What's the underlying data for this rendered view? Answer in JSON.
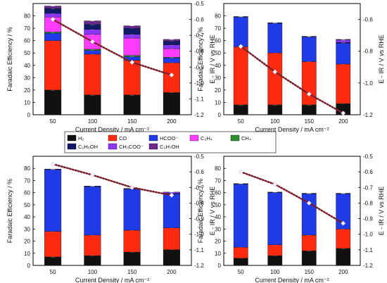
{
  "colors": {
    "H2": "#111111",
    "CO": "#ff2a10",
    "HCOO-": "#1f3ae6",
    "C2H4": "#ff3cff",
    "CH4": "#2f8f2f",
    "C2H5OH": "#101a66",
    "CH3COO-": "#8a36ff",
    "C3H7OH": "#6a2a8c",
    "potential": "#7a1f2a",
    "marker": "#f0f0ff"
  },
  "legend": {
    "items": [
      {
        "key": "H2",
        "label": "H₂"
      },
      {
        "key": "CO",
        "label": "CO"
      },
      {
        "key": "HCOO-",
        "label": "HCOO⁻"
      },
      {
        "key": "C2H4",
        "label": "C₂H₄"
      },
      {
        "key": "CH4",
        "label": "CH₄"
      },
      {
        "key": "C2H5OH",
        "label": "C₂H₅OH"
      },
      {
        "key": "CH3COO-",
        "label": "CH₃COO⁻"
      },
      {
        "key": "C3H7OH",
        "label": "C₃H₇OH"
      }
    ]
  },
  "chart_data": [
    {
      "type": "bar",
      "stacked": true,
      "xlabel": "Current Density / mA cm⁻²",
      "ylabel": "Faradaic Efficiency / %",
      "ylabel_right": "E - IR / V vs RHE",
      "categories": [
        "50",
        "100",
        "150",
        "200"
      ],
      "ylim": [
        0,
        90
      ],
      "yticks": [
        0,
        10,
        20,
        30,
        40,
        50,
        60,
        70,
        80
      ],
      "y2lim": [
        -1.2,
        -0.5
      ],
      "y2ticks": [
        -0.5,
        -0.6,
        -0.7,
        -0.8,
        -0.9,
        -1.0,
        -1.1,
        -1.2
      ],
      "show_xlabel": true,
      "show_legend_below": true,
      "series": [
        {
          "key": "H2",
          "values": [
            20,
            16,
            16,
            18
          ]
        },
        {
          "key": "CO",
          "values": [
            40,
            33,
            28,
            24
          ]
        },
        {
          "key": "HCOO-",
          "values": [
            6,
            3,
            3,
            4
          ]
        },
        {
          "key": "CH4",
          "values": [
            1,
            1,
            1,
            0.5
          ]
        },
        {
          "key": "C2H4",
          "values": [
            12,
            12,
            14,
            7
          ]
        },
        {
          "key": "CH3COO-",
          "values": [
            3,
            4,
            3,
            3
          ]
        },
        {
          "key": "C2H5OH",
          "values": [
            4,
            4,
            5,
            3
          ]
        },
        {
          "key": "C3H7OH",
          "values": [
            2,
            3,
            2,
            1.5
          ]
        }
      ],
      "potential": [
        -0.6,
        -0.74,
        -0.87,
        -0.95
      ]
    },
    {
      "type": "bar",
      "stacked": true,
      "xlabel": "Current Density / mA cm⁻²",
      "ylabel": "Faradaic Efficiency / %",
      "ylabel_right": "E - IR / V vs RHE",
      "categories": [
        "50",
        "100",
        "150",
        "200"
      ],
      "ylim": [
        0,
        90
      ],
      "yticks": [
        0,
        10,
        20,
        30,
        40,
        50,
        60,
        70,
        80
      ],
      "y2lim": [
        -1.2,
        -0.5
      ],
      "y2ticks": [
        -0.6,
        -0.8,
        -1.0,
        -1.2
      ],
      "show_xlabel": true,
      "show_legend_below": false,
      "series": [
        {
          "key": "H2",
          "values": [
            8,
            8,
            8,
            9
          ]
        },
        {
          "key": "CO",
          "values": [
            47,
            42,
            35,
            32
          ]
        },
        {
          "key": "HCOO-",
          "values": [
            24,
            24,
            20,
            17
          ]
        },
        {
          "key": "C2H5OH",
          "values": [
            0.5,
            0.5,
            0.5,
            0.5
          ]
        },
        {
          "key": "CH3COO-",
          "values": [
            0,
            0,
            0,
            2
          ]
        },
        {
          "key": "C3H7OH",
          "values": [
            0,
            0,
            0,
            0.5
          ]
        }
      ],
      "potential": [
        -0.77,
        -0.93,
        -1.07,
        -1.19
      ]
    },
    {
      "type": "bar",
      "stacked": true,
      "xlabel": "Current Density / mA cm⁻²",
      "ylabel": "Faradaic Efficiency / %",
      "ylabel_right": "E - IR / V vs RHE",
      "categories": [
        "50",
        "100",
        "150",
        "200"
      ],
      "ylim": [
        0,
        90
      ],
      "yticks": [
        0,
        10,
        20,
        30,
        40,
        50,
        60,
        70,
        80
      ],
      "y2lim": [
        -1.2,
        -0.5
      ],
      "y2ticks": [
        -0.5,
        -0.6,
        -0.7,
        -0.8,
        -0.9,
        -1.0,
        -1.1,
        -1.2
      ],
      "show_xlabel": true,
      "show_legend_below": false,
      "series": [
        {
          "key": "H2",
          "values": [
            7,
            8,
            11,
            13
          ]
        },
        {
          "key": "CO",
          "values": [
            21,
            17,
            18,
            18
          ]
        },
        {
          "key": "HCOO-",
          "values": [
            51,
            40,
            34,
            28
          ]
        },
        {
          "key": "C2H5OH",
          "values": [
            0.5,
            0.5,
            0.5,
            0.5
          ]
        },
        {
          "key": "CH3COO-",
          "values": [
            0,
            0,
            0,
            1
          ]
        }
      ],
      "potential": [
        -0.55,
        -0.62,
        -0.7,
        -0.75
      ]
    },
    {
      "type": "bar",
      "stacked": true,
      "xlabel": "Current Density / mA cm⁻²",
      "ylabel": "Faradaic Efficiency / %",
      "ylabel_right": "E - IR / V vs RHE",
      "categories": [
        "50",
        "100",
        "150",
        "200"
      ],
      "ylim": [
        0,
        90
      ],
      "yticks": [
        0,
        10,
        20,
        30,
        40,
        50,
        60,
        70,
        80
      ],
      "y2lim": [
        -1.2,
        -0.5
      ],
      "y2ticks": [
        -0.5,
        -0.6,
        -0.7,
        -0.8,
        -0.9,
        -1.0,
        -1.1,
        -1.2
      ],
      "show_xlabel": true,
      "show_legend_below": false,
      "series": [
        {
          "key": "H2",
          "values": [
            6,
            8,
            12,
            14
          ]
        },
        {
          "key": "CO",
          "values": [
            9,
            9,
            13,
            16
          ]
        },
        {
          "key": "HCOO-",
          "values": [
            52,
            43,
            34,
            29
          ]
        },
        {
          "key": "C2H5OH",
          "values": [
            0.5,
            0.5,
            0.5,
            0.5
          ]
        }
      ],
      "potential": [
        -0.6,
        -0.68,
        -0.8,
        -0.93
      ]
    }
  ]
}
